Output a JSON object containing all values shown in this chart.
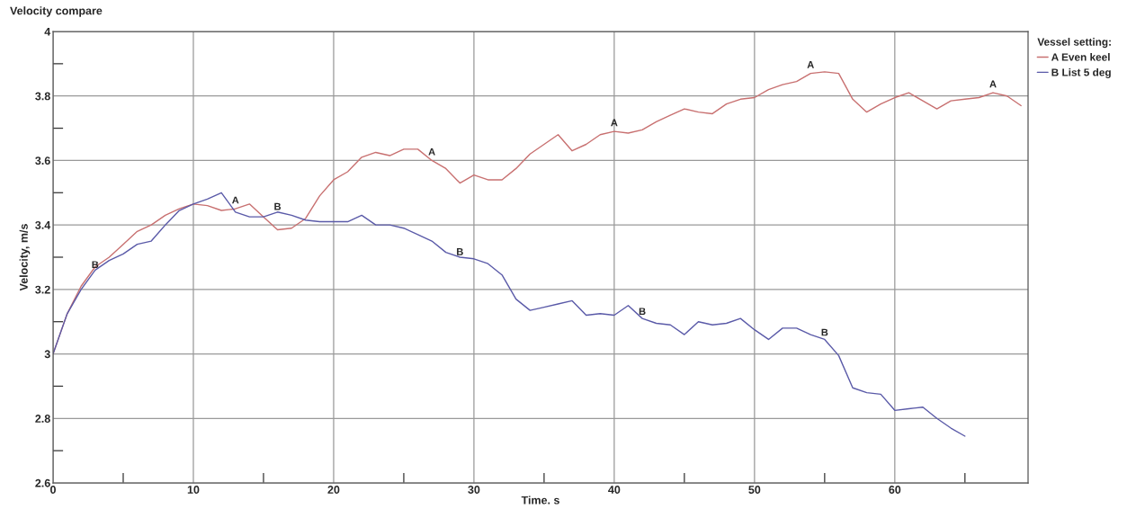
{
  "chart_data": {
    "type": "line",
    "title": "Velocity compare",
    "xlabel": "Time. s",
    "ylabel": "Velocity, m/s",
    "legend_title": "Vessel setting:",
    "x": [
      0,
      1,
      2,
      3,
      4,
      5,
      6,
      7,
      8,
      9,
      10,
      11,
      12,
      13,
      14,
      15,
      16,
      17,
      18,
      19,
      20,
      21,
      22,
      23,
      24,
      25,
      26,
      27,
      28,
      29,
      30,
      31,
      32,
      33,
      34,
      35,
      36,
      37,
      38,
      39,
      40,
      41,
      42,
      43,
      44,
      45,
      46,
      47,
      48,
      49,
      50,
      51,
      52,
      53,
      54,
      55,
      56,
      57,
      58,
      59,
      60,
      61,
      62,
      63,
      64,
      65,
      66,
      67,
      68,
      69
    ],
    "series": [
      {
        "name": "A Even keel",
        "color": "#c87070",
        "values": [
          3.0,
          3.124,
          3.21,
          3.27,
          3.3,
          3.34,
          3.38,
          3.4,
          3.43,
          3.45,
          3.465,
          3.46,
          3.445,
          3.45,
          3.465,
          3.425,
          3.385,
          3.39,
          3.42,
          3.49,
          3.54,
          3.565,
          3.61,
          3.625,
          3.615,
          3.635,
          3.635,
          3.6,
          3.575,
          3.53,
          3.555,
          3.54,
          3.54,
          3.575,
          3.62,
          3.65,
          3.68,
          3.63,
          3.65,
          3.68,
          3.69,
          3.685,
          3.695,
          3.72,
          3.74,
          3.76,
          3.75,
          3.745,
          3.775,
          3.79,
          3.795,
          3.82,
          3.835,
          3.845,
          3.87,
          3.875,
          3.87,
          3.79,
          3.75,
          3.775,
          3.795,
          3.81,
          3.785,
          3.76,
          3.785,
          3.79,
          3.795,
          3.81,
          3.8,
          3.77
        ]
      },
      {
        "name": "B List 5 deg",
        "color": "#5a5aa8",
        "values": [
          3.0,
          3.124,
          3.2,
          3.26,
          3.29,
          3.31,
          3.34,
          3.35,
          3.4,
          3.445,
          3.465,
          3.48,
          3.5,
          3.44,
          3.425,
          3.425,
          3.44,
          3.43,
          3.415,
          3.41,
          3.41,
          3.41,
          3.43,
          3.4,
          3.4,
          3.39,
          3.37,
          3.35,
          3.315,
          3.3,
          3.295,
          3.28,
          3.245,
          3.17,
          3.135,
          3.145,
          3.155,
          3.165,
          3.12,
          3.125,
          3.12,
          3.15,
          3.11,
          3.095,
          3.09,
          3.06,
          3.1,
          3.09,
          3.095,
          3.11,
          3.075,
          3.045,
          3.08,
          3.08,
          3.06,
          3.045,
          2.995,
          2.895,
          2.88,
          2.875,
          2.825,
          2.83,
          2.835,
          2.8,
          2.77,
          2.745,
          null,
          null,
          null,
          null
        ]
      }
    ],
    "annotations": [
      {
        "text": "A",
        "x": 13,
        "y": 3.46
      },
      {
        "text": "A",
        "x": 27,
        "y": 3.61
      },
      {
        "text": "A",
        "x": 40,
        "y": 3.7
      },
      {
        "text": "A",
        "x": 54,
        "y": 3.88
      },
      {
        "text": "A",
        "x": 67,
        "y": 3.82
      },
      {
        "text": "B",
        "x": 3,
        "y": 3.26
      },
      {
        "text": "B",
        "x": 16,
        "y": 3.44
      },
      {
        "text": "B",
        "x": 29,
        "y": 3.3
      },
      {
        "text": "B",
        "x": 42,
        "y": 3.115
      },
      {
        "text": "B",
        "x": 55,
        "y": 3.05
      }
    ],
    "xlim": [
      0,
      69.5
    ],
    "ylim": [
      2.6,
      4
    ],
    "xticks": [
      0,
      {
        "value": 5,
        "label": null
      },
      10,
      {
        "value": 15,
        "label": null
      },
      20,
      {
        "value": 25,
        "label": null
      },
      30,
      {
        "value": 35,
        "label": null
      },
      40,
      {
        "value": 45,
        "label": null
      },
      50,
      {
        "value": 55,
        "label": null
      },
      60,
      {
        "value": 65,
        "label": null
      }
    ],
    "yticks": [
      2.6,
      {
        "value": 2.7,
        "label": null
      },
      2.8,
      {
        "value": 2.9,
        "label": null
      },
      3,
      {
        "value": 3.1,
        "label": null
      },
      3.2,
      {
        "value": 3.3,
        "label": null
      },
      3.4,
      {
        "value": 3.5,
        "label": null
      },
      3.6,
      {
        "value": 3.7,
        "label": null
      },
      3.8,
      {
        "value": 3.9,
        "label": null
      },
      4
    ],
    "grid": true,
    "legend": "right",
    "marker": "none",
    "line_style": "solid"
  }
}
